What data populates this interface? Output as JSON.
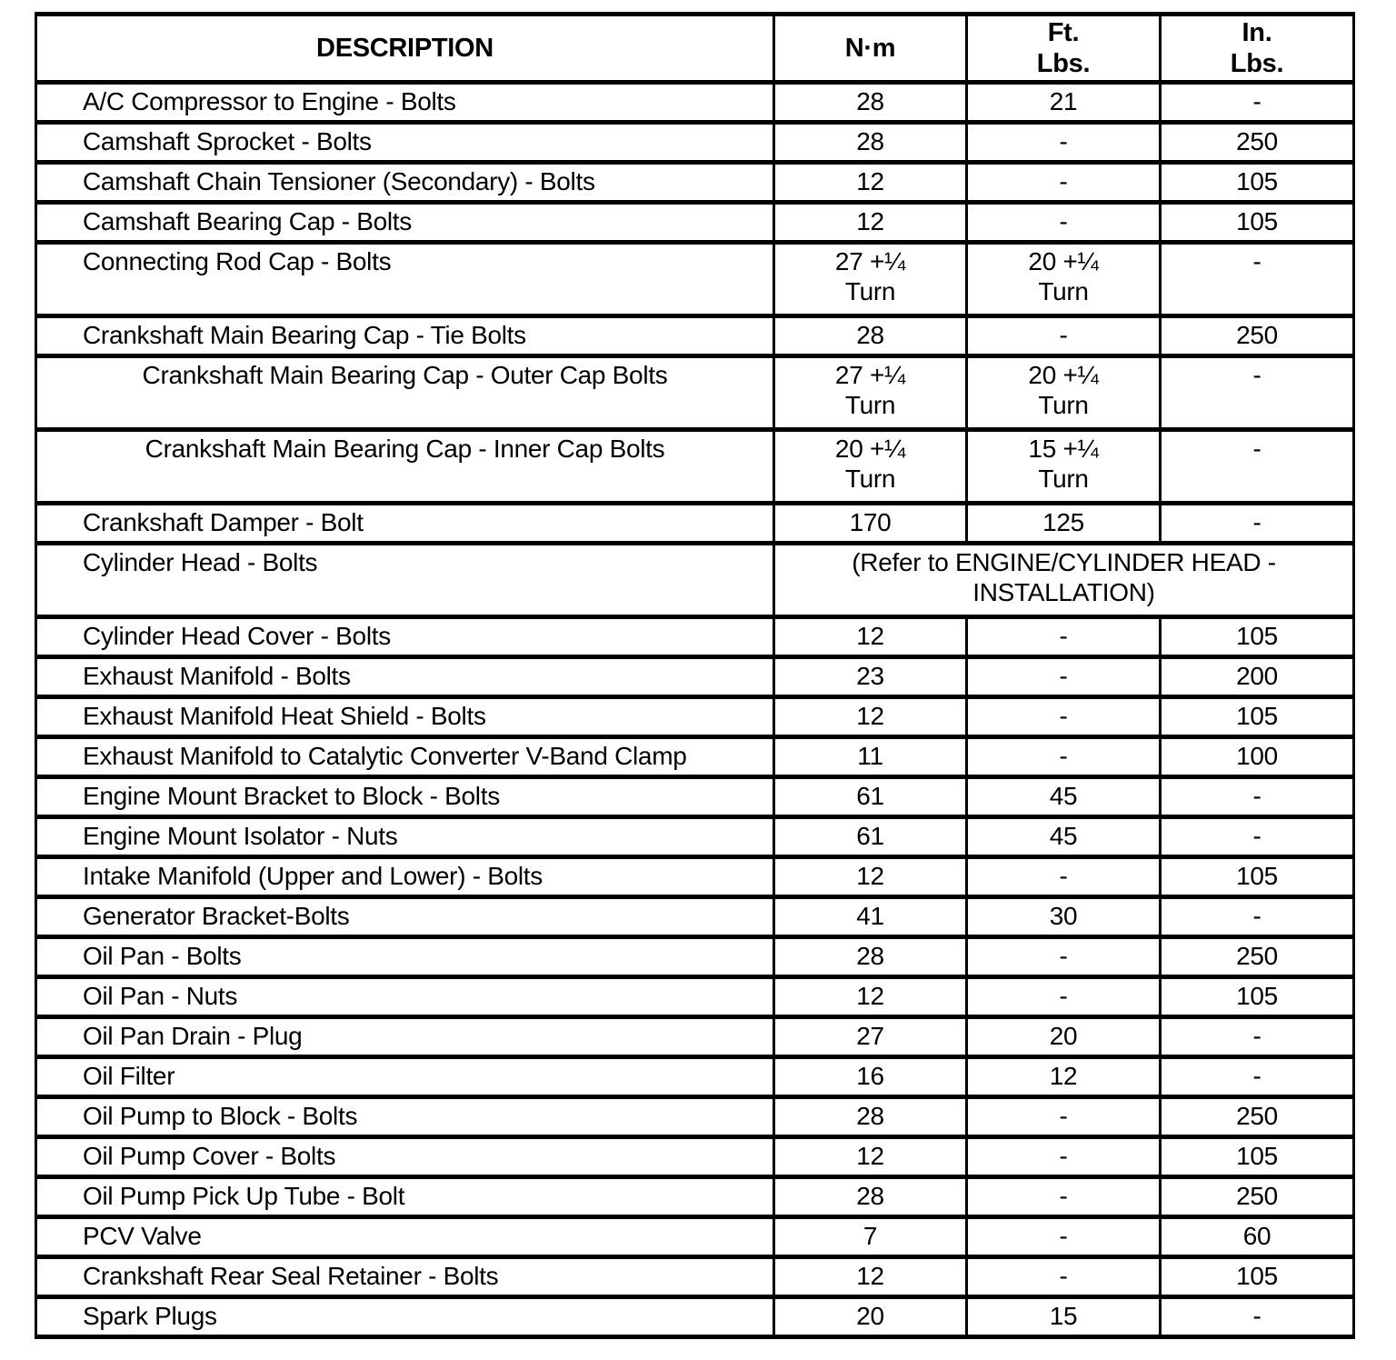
{
  "page": {
    "background": "#ffffff",
    "text_color": "#000000",
    "border_color": "#000000"
  },
  "table": {
    "columns": [
      "DESCRIPTION",
      "N·m",
      "Ft.\nLbs.",
      "In.\nLbs."
    ],
    "rows": [
      {
        "description": "A/C Compressor to Engine - Bolts",
        "nm": "28",
        "ft": "21",
        "in": "-"
      },
      {
        "description": "Camshaft Sprocket - Bolts",
        "nm": "28",
        "ft": "-",
        "in": "250"
      },
      {
        "description": "Camshaft Chain Tensioner (Secondary) - Bolts",
        "nm": "12",
        "ft": "-",
        "in": "105"
      },
      {
        "description": "Camshaft Bearing Cap - Bolts",
        "nm": "12",
        "ft": "-",
        "in": "105"
      },
      {
        "description": "Connecting Rod Cap - Bolts",
        "nm": "27 +¼\nTurn",
        "ft": "20 +¼\nTurn",
        "in": "-",
        "tall": true
      },
      {
        "description": "Crankshaft Main Bearing Cap - Tie Bolts",
        "nm": "28",
        "ft": "-",
        "in": "250"
      },
      {
        "description": "Crankshaft Main Bearing Cap - Outer Cap Bolts",
        "nm": "27 +¼\nTurn",
        "ft": "20 +¼\nTurn",
        "in": "-",
        "tall": true,
        "center": true
      },
      {
        "description": "Crankshaft Main Bearing Cap - Inner Cap Bolts",
        "nm": "20 +¼\nTurn",
        "ft": "15 +¼\nTurn",
        "in": "-",
        "tall": true,
        "center": true
      },
      {
        "description": "Crankshaft Damper - Bolt",
        "nm": "170",
        "ft": "125",
        "in": "-"
      },
      {
        "description": "Cylinder Head - Bolts",
        "merged": "(Refer to ENGINE/CYLINDER HEAD -\nINSTALLATION)",
        "tall": true
      },
      {
        "description": "Cylinder Head Cover - Bolts",
        "nm": "12",
        "ft": "-",
        "in": "105"
      },
      {
        "description": "Exhaust Manifold - Bolts",
        "nm": "23",
        "ft": "-",
        "in": "200"
      },
      {
        "description": "Exhaust Manifold Heat Shield - Bolts",
        "nm": "12",
        "ft": "-",
        "in": "105"
      },
      {
        "description": "Exhaust Manifold to Catalytic Converter V-Band Clamp",
        "nm": "11",
        "ft": "-",
        "in": "100"
      },
      {
        "description": "Engine Mount Bracket to Block - Bolts",
        "nm": "61",
        "ft": "45",
        "in": "-"
      },
      {
        "description": "Engine Mount Isolator - Nuts",
        "nm": "61",
        "ft": "45",
        "in": "-"
      },
      {
        "description": "Intake Manifold (Upper and Lower) - Bolts",
        "nm": "12",
        "ft": "-",
        "in": "105"
      },
      {
        "description": "Generator Bracket-Bolts",
        "nm": "41",
        "ft": "30",
        "in": "-"
      },
      {
        "description": "Oil Pan - Bolts",
        "nm": "28",
        "ft": "-",
        "in": "250"
      },
      {
        "description": "Oil Pan - Nuts",
        "nm": "12",
        "ft": "-",
        "in": "105"
      },
      {
        "description": "Oil Pan Drain - Plug",
        "nm": "27",
        "ft": "20",
        "in": "-"
      },
      {
        "description": "Oil Filter",
        "nm": "16",
        "ft": "12",
        "in": "-"
      },
      {
        "description": "Oil Pump to Block - Bolts",
        "nm": "28",
        "ft": "-",
        "in": "250"
      },
      {
        "description": "Oil Pump Cover - Bolts",
        "nm": "12",
        "ft": "-",
        "in": "105"
      },
      {
        "description": "Oil Pump Pick Up Tube - Bolt",
        "nm": "28",
        "ft": "-",
        "in": "250"
      },
      {
        "description": "PCV Valve",
        "nm": "7",
        "ft": "-",
        "in": "60"
      },
      {
        "description": "Crankshaft Rear Seal Retainer - Bolts",
        "nm": "12",
        "ft": "-",
        "in": "105"
      },
      {
        "description": "Spark Plugs",
        "nm": "20",
        "ft": "15",
        "in": "-"
      }
    ]
  }
}
